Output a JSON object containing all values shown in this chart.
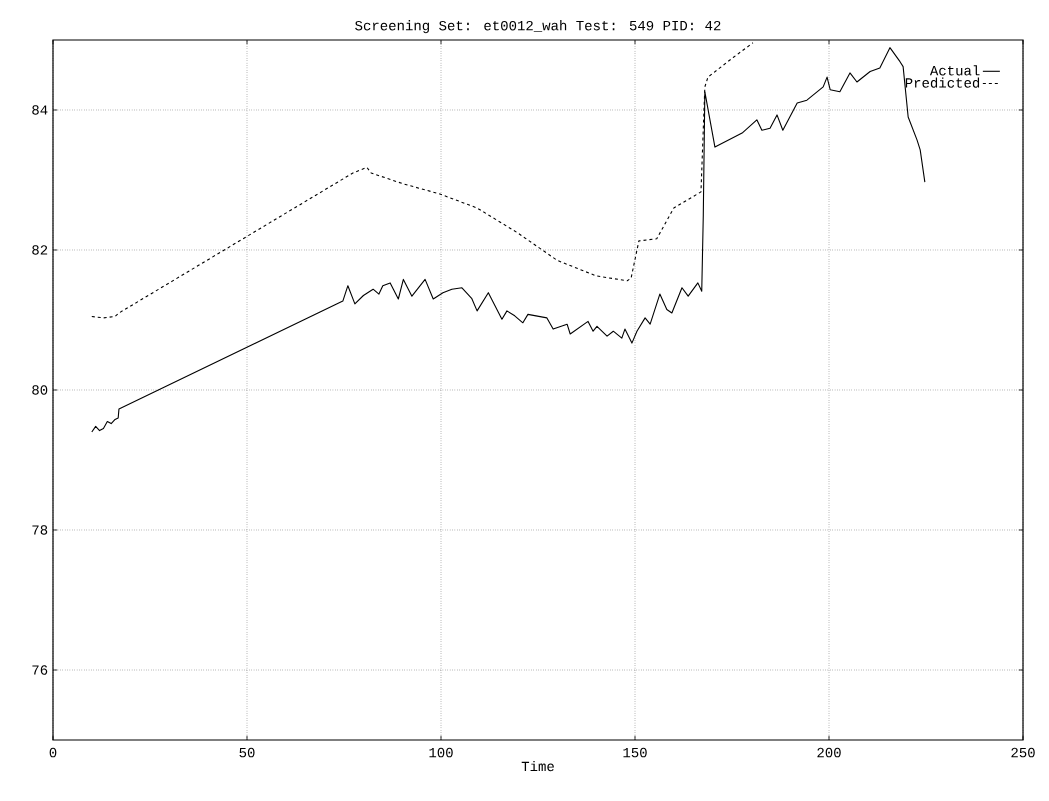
{
  "chart_data": {
    "type": "line",
    "title": "Screening Set: et0012_wah Test: 549  PID: 42",
    "xlabel": "Time",
    "xlim": [
      0,
      250
    ],
    "ylim": [
      75,
      85
    ],
    "xticks": [
      0,
      50,
      100,
      150,
      200,
      250
    ],
    "yticks": [
      76,
      78,
      80,
      82,
      84
    ],
    "grid": true,
    "legend": "top right",
    "marker": "none",
    "series": [
      {
        "name": "Actual",
        "color": "#000000",
        "line_style": "solid",
        "x": [
          10,
          11,
          12,
          13,
          14,
          15,
          16,
          16.8,
          17,
          74.7,
          76,
          77.8,
          80,
          82.5,
          84,
          85,
          86.9,
          89,
          90.3,
          92.5,
          95.9,
          98,
          100.5,
          102.8,
          105.4,
          107.9,
          109.3,
          112.2,
          115.7,
          117,
          119,
          121.1,
          122.4,
          127.3,
          128.9,
          132.5,
          133.3,
          137.9,
          139.2,
          140.2,
          142.8,
          144.4,
          146.6,
          147.4,
          149.2,
          150.5,
          152.6,
          153.9,
          156.4,
          158.2,
          159.5,
          162.1,
          163.7,
          166.2,
          167.2,
          167.6,
          168,
          170.6,
          177.6,
          181.4,
          182.7,
          184.8,
          186.6,
          188.1,
          191.8,
          194.3,
          198.5,
          199.5,
          200.3,
          202.8,
          205.4,
          207.2,
          210.6,
          213.1,
          215.7,
          218.3,
          219.1,
          220.4,
          222.7,
          223.5,
          224.7
        ],
        "values": [
          79.4,
          79.48,
          79.42,
          79.45,
          79.55,
          79.52,
          79.58,
          79.6,
          79.73,
          81.27,
          81.49,
          81.23,
          81.35,
          81.44,
          81.37,
          81.49,
          81.53,
          81.3,
          81.58,
          81.34,
          81.58,
          81.3,
          81.39,
          81.44,
          81.46,
          81.31,
          81.13,
          81.39,
          81.01,
          81.13,
          81.06,
          80.96,
          81.08,
          81.03,
          80.87,
          80.94,
          80.8,
          80.98,
          80.84,
          80.91,
          80.77,
          80.84,
          80.74,
          80.87,
          80.67,
          80.84,
          81.03,
          80.94,
          81.37,
          81.15,
          81.1,
          81.46,
          81.34,
          81.53,
          81.41,
          82.5,
          84.26,
          83.47,
          83.67,
          83.86,
          83.71,
          83.74,
          83.93,
          83.71,
          84.1,
          84.14,
          84.33,
          84.47,
          84.29,
          84.26,
          84.53,
          84.4,
          84.55,
          84.6,
          84.89,
          84.69,
          84.62,
          83.9,
          83.57,
          83.43,
          82.97
        ]
      },
      {
        "name": "Predicted",
        "color": "#000000",
        "line_style": "dashed",
        "x": [
          10,
          13,
          16,
          17,
          77.3,
          80.9,
          82,
          90,
          99.7,
          109.3,
          119.6,
          130,
          140,
          148,
          149,
          151,
          155.6,
          160,
          167,
          168,
          168.8,
          175.3,
          180.4
        ],
        "values": [
          81.05,
          81.03,
          81.05,
          81.1,
          83.1,
          83.18,
          83.1,
          82.95,
          82.8,
          82.6,
          82.25,
          81.85,
          81.63,
          81.56,
          81.6,
          82.13,
          82.16,
          82.6,
          82.83,
          84.33,
          84.47,
          84.75,
          84.96
        ]
      }
    ]
  }
}
